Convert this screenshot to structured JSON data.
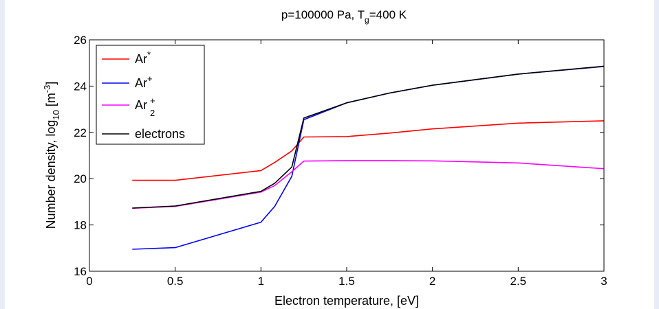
{
  "chart_data": {
    "type": "line",
    "title": "p=100000 Pa, T",
    "title_sub": "g",
    "title_suffix": "=400 K",
    "xlabel": "Electron temperature, [eV]",
    "ylabel_prefix": "Number density, log",
    "ylabel_sub": "10",
    "ylabel_mid": " [m",
    "ylabel_sup": "-3",
    "ylabel_suffix": "]",
    "xlim": [
      0,
      3
    ],
    "ylim": [
      16,
      26
    ],
    "xticks": [
      0,
      0.5,
      1,
      1.5,
      2,
      2.5,
      3
    ],
    "xtick_labels": [
      "0",
      "0.5",
      "1",
      "1.5",
      "2",
      "2.5",
      "3"
    ],
    "yticks": [
      16,
      18,
      20,
      22,
      24,
      26
    ],
    "ytick_labels": [
      "16",
      "18",
      "20",
      "22",
      "24",
      "26"
    ],
    "grid": false,
    "legend_position": "top-left",
    "series": [
      {
        "name": "Ar",
        "legend_sup": "*",
        "legend_sub": "",
        "color": "#ff0000",
        "x": [
          0.25,
          0.5,
          1.0,
          1.08,
          1.18,
          1.25,
          1.5,
          1.75,
          2.0,
          2.5,
          3.0
        ],
        "y": [
          19.93,
          19.93,
          20.35,
          20.7,
          21.2,
          21.8,
          21.82,
          21.97,
          22.15,
          22.4,
          22.5
        ]
      },
      {
        "name": "Ar",
        "legend_sup": "+",
        "legend_sub": "",
        "color": "#0000ff",
        "x": [
          0.25,
          0.5,
          1.0,
          1.08,
          1.18,
          1.25,
          1.5,
          1.75,
          2.0,
          2.5,
          3.0
        ],
        "y": [
          16.95,
          17.02,
          18.12,
          18.8,
          20.1,
          22.55,
          23.28,
          23.7,
          24.04,
          24.52,
          24.85
        ]
      },
      {
        "name": "Ar",
        "legend_sup": "+",
        "legend_sub": "2",
        "color": "#ff00ff",
        "x": [
          0.25,
          0.5,
          1.0,
          1.08,
          1.18,
          1.25,
          1.5,
          1.75,
          2.0,
          2.5,
          3.0
        ],
        "y": [
          18.72,
          18.8,
          19.42,
          19.7,
          20.3,
          20.76,
          20.78,
          20.78,
          20.77,
          20.68,
          20.43
        ]
      },
      {
        "name": "electrons",
        "legend_sup": "",
        "legend_sub": "",
        "color": "#000000",
        "x": [
          0.25,
          0.5,
          1.0,
          1.08,
          1.18,
          1.25,
          1.5,
          1.75,
          2.0,
          2.5,
          3.0
        ],
        "y": [
          18.73,
          18.82,
          19.45,
          19.8,
          20.5,
          22.62,
          23.28,
          23.7,
          24.04,
          24.52,
          24.86
        ]
      }
    ]
  }
}
